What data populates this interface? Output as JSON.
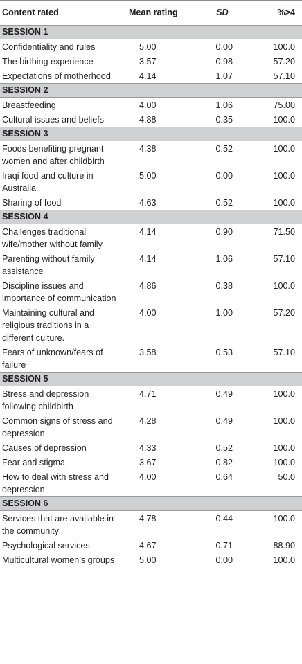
{
  "header": {
    "content": "Content rated",
    "mean": "Mean rating",
    "sd": "SD",
    "pct": "%>4"
  },
  "sessions": [
    {
      "title": "SESSION 1",
      "rows": [
        {
          "content": "Confidentiality and rules",
          "mean": "5.00",
          "sd": "0.00",
          "pct": "100.0"
        },
        {
          "content": "The birthing experience",
          "mean": "3.57",
          "sd": "0.98",
          "pct": "57.20"
        },
        {
          "content": "Expectations of motherhood",
          "mean": "4.14",
          "sd": "1.07",
          "pct": "57.10"
        }
      ]
    },
    {
      "title": "SESSION 2",
      "rows": [
        {
          "content": "Breastfeeding",
          "mean": "4.00",
          "sd": "1.06",
          "pct": "75.00"
        },
        {
          "content": "Cultural issues and beliefs",
          "mean": "4.88",
          "sd": "0.35",
          "pct": "100.0"
        }
      ]
    },
    {
      "title": "SESSION 3",
      "rows": [
        {
          "content": "Foods benefiting pregnant women and after childbirth",
          "mean": "4.38",
          "sd": "0.52",
          "pct": "100.0"
        },
        {
          "content": "Iraqi food and culture in Australia",
          "mean": "5.00",
          "sd": "0.00",
          "pct": "100.0"
        },
        {
          "content": "Sharing of food",
          "mean": "4.63",
          "sd": "0.52",
          "pct": "100.0"
        }
      ]
    },
    {
      "title": "SESSION 4",
      "rows": [
        {
          "content": "Challenges traditional wife/mother without family",
          "mean": "4.14",
          "sd": "0.90",
          "pct": "71.50"
        },
        {
          "content": "Parenting without family assistance",
          "mean": "4.14",
          "sd": "1.06",
          "pct": "57.10"
        },
        {
          "content": "Discipline issues and importance of communication",
          "mean": "4.86",
          "sd": "0.38",
          "pct": "100.0"
        },
        {
          "content": "Maintaining cultural and religious traditions in a different culture.",
          "mean": "4.00",
          "sd": "1.00",
          "pct": "57.20"
        },
        {
          "content": "Fears of unknown/fears of failure",
          "mean": "3.58",
          "sd": "0.53",
          "pct": "57.10"
        }
      ]
    },
    {
      "title": "SESSION 5",
      "rows": [
        {
          "content": "Stress and depression following childbirth",
          "mean": "4.71",
          "sd": "0.49",
          "pct": "100.0"
        },
        {
          "content": "Common signs of stress and depression",
          "mean": "4.28",
          "sd": "0.49",
          "pct": "100.0"
        },
        {
          "content": "Causes of depression",
          "mean": "4.33",
          "sd": "0.52",
          "pct": "100.0"
        },
        {
          "content": "Fear and stigma",
          "mean": "3.67",
          "sd": "0.82",
          "pct": "100.0"
        },
        {
          "content": "How to deal with stress and depression",
          "mean": "4.00",
          "sd": "0.64",
          "pct": "50.0"
        }
      ]
    },
    {
      "title": "SESSION 6",
      "rows": [
        {
          "content": "Services that are available in the community",
          "mean": "4.78",
          "sd": "0.44",
          "pct": "100.0"
        },
        {
          "content": "Psychological services",
          "mean": "4.67",
          "sd": "0.71",
          "pct": "88.90"
        },
        {
          "content": "Multicultural women’s groups",
          "mean": "5.00",
          "sd": "0.00",
          "pct": "100.0"
        }
      ]
    }
  ]
}
